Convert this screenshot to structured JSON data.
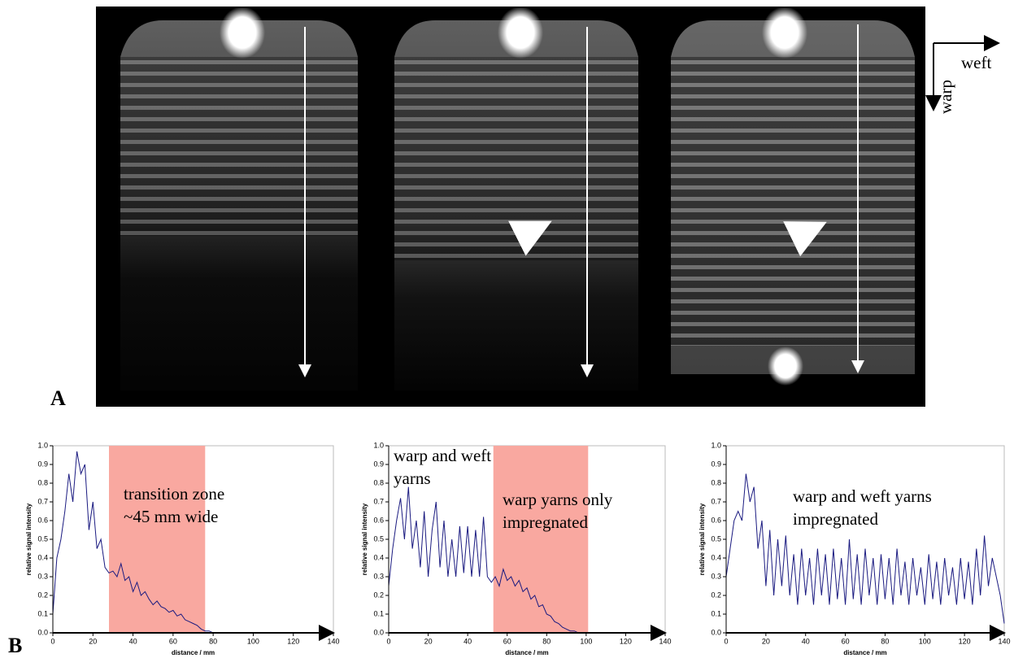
{
  "panel_labels": {
    "a": "A",
    "b": "B"
  },
  "orientation": {
    "weft": "weft",
    "warp": "warp"
  },
  "chart_data": [
    {
      "type": "line",
      "xlabel": "distance / mm",
      "ylabel": "relative signal intensity",
      "color": "#1a1a80",
      "xlim": [
        0,
        140
      ],
      "ylim": [
        0,
        1
      ],
      "xticks": [
        0,
        20,
        40,
        60,
        80,
        100,
        120,
        140
      ],
      "yticks": [
        {
          "value": 0,
          "label": "0.0"
        },
        {
          "value": 0.1,
          "label": "0.1"
        },
        {
          "value": 0.2,
          "label": "0.2"
        },
        {
          "value": 0.3,
          "label": "0.3"
        },
        {
          "value": 0.4,
          "label": "0.4"
        },
        {
          "value": 0.5,
          "label": "0.5"
        },
        {
          "value": 0.6,
          "label": "0.6"
        },
        {
          "value": 0.7,
          "label": "0.7"
        },
        {
          "value": 0.8,
          "label": "0.8"
        },
        {
          "value": 0.9,
          "label": "0.9"
        },
        {
          "value": 1,
          "label": "1.0"
        }
      ],
      "highlight": {
        "range": [
          28,
          76
        ],
        "color": "#f9a8a0"
      },
      "annotations": [
        [
          "transition zone",
          "~45 mm wide"
        ]
      ],
      "x": [
        0,
        2,
        4,
        6,
        8,
        10,
        12,
        14,
        16,
        18,
        20,
        22,
        24,
        26,
        28,
        30,
        32,
        34,
        36,
        38,
        40,
        42,
        44,
        46,
        48,
        50,
        52,
        54,
        56,
        58,
        60,
        62,
        64,
        66,
        68,
        70,
        72,
        74,
        76,
        78,
        80,
        82,
        84,
        86,
        88,
        90,
        92,
        94,
        96,
        98,
        100,
        102,
        104,
        106,
        108,
        110
      ],
      "values": [
        0.1,
        0.4,
        0.5,
        0.65,
        0.85,
        0.7,
        0.97,
        0.85,
        0.9,
        0.55,
        0.7,
        0.45,
        0.5,
        0.35,
        0.32,
        0.33,
        0.3,
        0.37,
        0.28,
        0.3,
        0.22,
        0.27,
        0.2,
        0.22,
        0.18,
        0.15,
        0.17,
        0.14,
        0.13,
        0.11,
        0.12,
        0.09,
        0.1,
        0.07,
        0.06,
        0.05,
        0.04,
        0.02,
        0.01,
        0.01,
        0,
        0,
        0,
        0,
        0,
        0,
        0,
        0,
        0,
        0,
        0,
        0,
        0,
        0,
        0,
        0
      ]
    },
    {
      "type": "line",
      "xlabel": "distance / mm",
      "ylabel": "relative signal intensity",
      "color": "#1a1a80",
      "xlim": [
        0,
        140
      ],
      "ylim": [
        0,
        1
      ],
      "xticks": [
        0,
        20,
        40,
        60,
        80,
        100,
        120,
        140
      ],
      "yticks": [
        {
          "value": 0,
          "label": "0.0"
        },
        {
          "value": 0.1,
          "label": "0.1"
        },
        {
          "value": 0.2,
          "label": "0.2"
        },
        {
          "value": 0.3,
          "label": "0.3"
        },
        {
          "value": 0.4,
          "label": "0.4"
        },
        {
          "value": 0.5,
          "label": "0.5"
        },
        {
          "value": 0.6,
          "label": "0.6"
        },
        {
          "value": 0.7,
          "label": "0.7"
        },
        {
          "value": 0.8,
          "label": "0.8"
        },
        {
          "value": 0.9,
          "label": "0.9"
        },
        {
          "value": 1,
          "label": "1.0"
        }
      ],
      "highlight": {
        "range": [
          53,
          101
        ],
        "color": "#f9a8a0"
      },
      "annotations": [
        [
          "warp and weft",
          "yarns"
        ],
        [
          "warp yarns only",
          "impregnated"
        ]
      ],
      "x": [
        0,
        2,
        4,
        6,
        8,
        10,
        12,
        14,
        16,
        18,
        20,
        22,
        24,
        26,
        28,
        30,
        32,
        34,
        36,
        38,
        40,
        42,
        44,
        46,
        48,
        50,
        52,
        54,
        56,
        58,
        60,
        62,
        64,
        66,
        68,
        70,
        72,
        74,
        76,
        78,
        80,
        82,
        84,
        86,
        88,
        90,
        92,
        94,
        96,
        98,
        100
      ],
      "values": [
        0.25,
        0.45,
        0.6,
        0.72,
        0.5,
        0.78,
        0.45,
        0.6,
        0.35,
        0.65,
        0.3,
        0.55,
        0.7,
        0.35,
        0.6,
        0.3,
        0.5,
        0.3,
        0.57,
        0.32,
        0.57,
        0.3,
        0.55,
        0.3,
        0.62,
        0.3,
        0.27,
        0.3,
        0.25,
        0.34,
        0.28,
        0.3,
        0.25,
        0.28,
        0.22,
        0.24,
        0.18,
        0.2,
        0.14,
        0.15,
        0.1,
        0.09,
        0.06,
        0.05,
        0.03,
        0.02,
        0.01,
        0.01,
        0,
        0,
        0
      ]
    },
    {
      "type": "line",
      "xlabel": "distance / mm",
      "ylabel": "relative signal intensity",
      "color": "#1a1a80",
      "xlim": [
        0,
        140
      ],
      "ylim": [
        0,
        1
      ],
      "xticks": [
        0,
        20,
        40,
        60,
        80,
        100,
        120,
        140
      ],
      "yticks": [
        {
          "value": 0,
          "label": "0.0"
        },
        {
          "value": 0.1,
          "label": "0.1"
        },
        {
          "value": 0.2,
          "label": "0.2"
        },
        {
          "value": 0.3,
          "label": "0.3"
        },
        {
          "value": 0.4,
          "label": "0.4"
        },
        {
          "value": 0.5,
          "label": "0.5"
        },
        {
          "value": 0.6,
          "label": "0.6"
        },
        {
          "value": 0.7,
          "label": "0.7"
        },
        {
          "value": 0.8,
          "label": "0.8"
        },
        {
          "value": 0.9,
          "label": "0.9"
        },
        {
          "value": 1,
          "label": "1.0"
        }
      ],
      "annotations": [
        [
          "warp and weft yarns",
          "impregnated"
        ]
      ],
      "x": [
        0,
        2,
        4,
        6,
        8,
        10,
        12,
        14,
        16,
        18,
        20,
        22,
        24,
        26,
        28,
        30,
        32,
        34,
        36,
        38,
        40,
        42,
        44,
        46,
        48,
        50,
        52,
        54,
        56,
        58,
        60,
        62,
        64,
        66,
        68,
        70,
        72,
        74,
        76,
        78,
        80,
        82,
        84,
        86,
        88,
        90,
        92,
        94,
        96,
        98,
        100,
        102,
        104,
        106,
        108,
        110,
        112,
        114,
        116,
        118,
        120,
        122,
        124,
        126,
        128,
        130,
        132,
        134,
        136,
        138,
        140
      ],
      "values": [
        0.3,
        0.45,
        0.6,
        0.65,
        0.6,
        0.85,
        0.7,
        0.78,
        0.45,
        0.6,
        0.25,
        0.55,
        0.2,
        0.5,
        0.25,
        0.52,
        0.2,
        0.42,
        0.15,
        0.45,
        0.2,
        0.4,
        0.15,
        0.45,
        0.2,
        0.42,
        0.15,
        0.45,
        0.18,
        0.4,
        0.15,
        0.5,
        0.18,
        0.42,
        0.15,
        0.45,
        0.2,
        0.4,
        0.15,
        0.42,
        0.18,
        0.4,
        0.15,
        0.45,
        0.2,
        0.38,
        0.15,
        0.4,
        0.2,
        0.35,
        0.15,
        0.42,
        0.18,
        0.38,
        0.15,
        0.4,
        0.2,
        0.35,
        0.15,
        0.4,
        0.18,
        0.38,
        0.15,
        0.45,
        0.2,
        0.52,
        0.25,
        0.4,
        0.3,
        0.2,
        0.05
      ]
    }
  ]
}
